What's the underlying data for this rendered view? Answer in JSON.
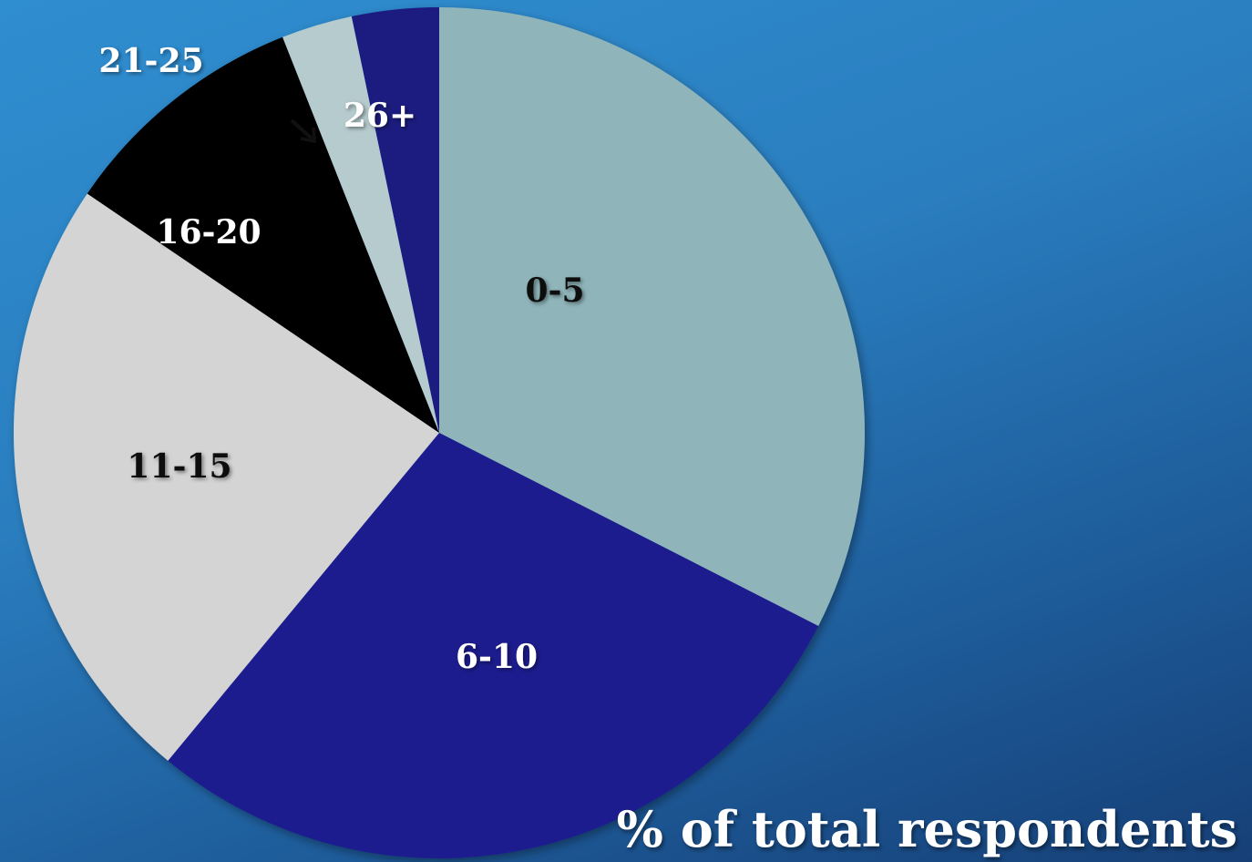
{
  "chart_data": {
    "type": "pie",
    "caption": "% of total respondents",
    "slices": [
      {
        "label": "0-5",
        "value": 32.5,
        "color": "#8fb5ba",
        "label_color": "#111111"
      },
      {
        "label": "6-10",
        "value": 28.5,
        "color": "#1f1d8e",
        "label_color": "#ffffff"
      },
      {
        "label": "11-15",
        "value": 23.5,
        "color": "#d4d4d4",
        "label_color": "#111111"
      },
      {
        "label": "16-20",
        "value": 9.5,
        "color": "#030303",
        "label_color": "#ffffff"
      },
      {
        "label": "21-25",
        "value": 2.7,
        "color": "#b6cbce",
        "label_color": "#ffffff"
      },
      {
        "label": "26+",
        "value": 3.3,
        "color": "#1d1a80",
        "label_color": "#ffffff"
      }
    ]
  }
}
